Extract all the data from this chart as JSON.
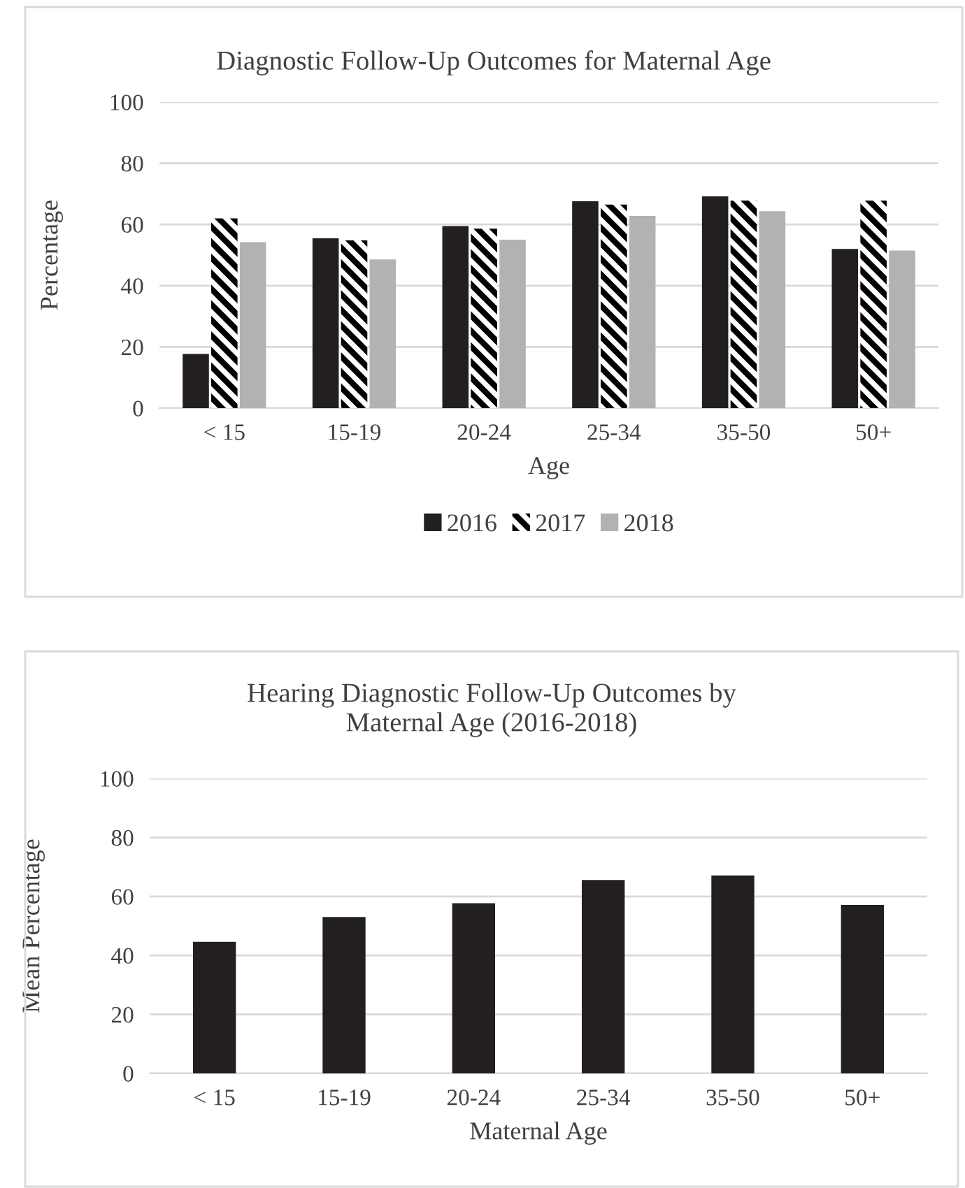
{
  "chart_data": [
    {
      "type": "bar",
      "title": "Diagnostic Follow-Up Outcomes for Maternal Age",
      "xlabel": "Age",
      "ylabel": "Percentage",
      "categories": [
        "< 15",
        "15-19",
        "20-24",
        "25-34",
        "35-50",
        "50+"
      ],
      "series": [
        {
          "name": "2016",
          "color": "#231f20",
          "values": [
            17.7,
            55.5,
            59.5,
            67.6,
            69.2,
            52
          ]
        },
        {
          "name": "2017",
          "color": "#000000",
          "values": [
            62,
            54.8,
            58.6,
            66.5,
            67.8,
            67.8
          ]
        },
        {
          "name": "2018",
          "color": "#b1b2b4",
          "values": [
            54.2,
            48.6,
            55,
            62.8,
            64.3,
            51.5
          ]
        }
      ],
      "ylim": [
        0,
        100
      ],
      "yticks": [
        0,
        20,
        40,
        60,
        80,
        100
      ],
      "grid": "y",
      "legend": "bottom"
    },
    {
      "type": "bar",
      "title": "Hearing Diagnostic Follow-Up Outcomes by\nMaternal Age (2016-2018)",
      "xlabel": "Maternal Age",
      "ylabel": "Mean Percentage",
      "categories": [
        "< 15",
        "15-19",
        "20-24",
        "25-34",
        "35-50",
        "50+"
      ],
      "series": [
        {
          "color": "#231f20",
          "values": [
            44.6,
            53,
            57.7,
            65.6,
            67.1,
            57.1
          ]
        }
      ],
      "ylim": [
        0,
        100
      ],
      "yticks": [
        0,
        20,
        40,
        60,
        80,
        100
      ],
      "grid": "y",
      "legend": false
    }
  ]
}
